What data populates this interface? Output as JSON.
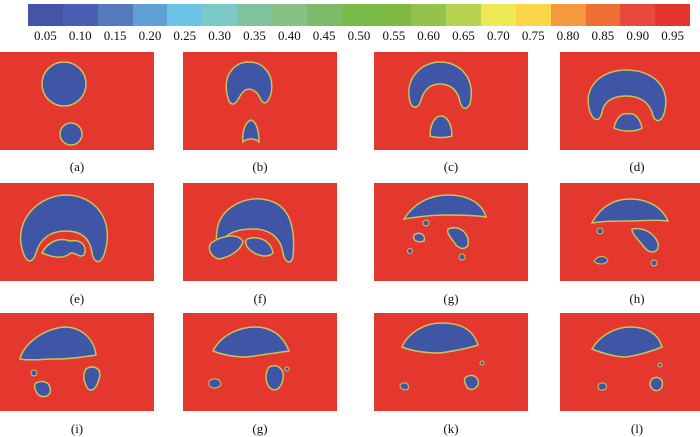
{
  "colorbar": {
    "colors": [
      "#4654a8",
      "#4a5fb2",
      "#5679bd",
      "#61a0d6",
      "#6cc3e8",
      "#7ccac8",
      "#80c39e",
      "#86c283",
      "#7bbb69",
      "#78bb4b",
      "#7fba45",
      "#93c34c",
      "#b8d34f",
      "#eeea55",
      "#fbd64a",
      "#f59a3c",
      "#ee6e34",
      "#e9493a",
      "#e5352f"
    ],
    "ticks": [
      "0.05",
      "0.10",
      "0.15",
      "0.20",
      "0.25",
      "0.30",
      "0.35",
      "0.40",
      "0.45",
      "0.50",
      "0.55",
      "0.60",
      "0.65",
      "0.70",
      "0.75",
      "0.80",
      "0.85",
      "0.90",
      "0.95"
    ]
  },
  "colors": {
    "water": "#e4382e",
    "air": "#3f55a6",
    "interface": "#e8e24a"
  },
  "panels": [
    {
      "label": "(a)"
    },
    {
      "label": "(b)"
    },
    {
      "label": "(c)"
    },
    {
      "label": "(d)"
    },
    {
      "label": "(e)"
    },
    {
      "label": "(f)"
    },
    {
      "label": "(g)"
    },
    {
      "label": "(h)"
    },
    {
      "label": "(i)"
    },
    {
      "label": "(g)"
    },
    {
      "label": "(k)"
    },
    {
      "label": "(l)"
    }
  ]
}
